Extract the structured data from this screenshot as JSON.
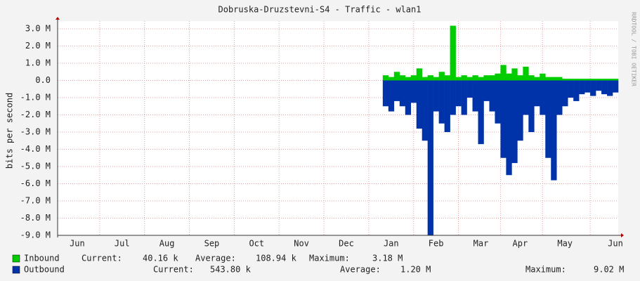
{
  "chart_data": {
    "type": "area",
    "title": "Dobruska-Druzstevni-S4 - Traffic - wlan1",
    "y_label": "bits per second",
    "watermark": "RRDTOOL / TOBI OETIKER",
    "grid": true,
    "categories": [
      null,
      null,
      null,
      "Jun",
      null,
      null,
      null,
      null,
      null,
      null,
      null,
      "Jul",
      null,
      null,
      null,
      null,
      null,
      null,
      null,
      "Aug",
      null,
      null,
      null,
      null,
      null,
      null,
      null,
      "Sep",
      null,
      null,
      null,
      null,
      null,
      null,
      null,
      "Oct",
      null,
      null,
      null,
      null,
      null,
      null,
      null,
      "Nov",
      null,
      null,
      null,
      null,
      null,
      null,
      null,
      "Dec",
      null,
      null,
      null,
      null,
      null,
      null,
      null,
      "Jan",
      null,
      null,
      null,
      null,
      null,
      null,
      null,
      "Feb",
      null,
      null,
      null,
      null,
      null,
      null,
      null,
      "Mar",
      null,
      null,
      null,
      null,
      null,
      null,
      "Apr",
      null,
      null,
      null,
      null,
      null,
      null,
      null,
      "May",
      null,
      null,
      null,
      null,
      null,
      null,
      null,
      null,
      "Jun"
    ],
    "ylim": [
      -9000000,
      3450000
    ],
    "yticks": [
      {
        "value": 3000000,
        "label": "3.0 M"
      },
      {
        "value": 2000000,
        "label": "2.0 M"
      },
      {
        "value": 1000000,
        "label": "1.0 M"
      },
      {
        "value": 0,
        "label": "0.0"
      },
      {
        "value": -1000000,
        "label": "-1.0 M"
      },
      {
        "value": -2000000,
        "label": "-2.0 M"
      },
      {
        "value": -3000000,
        "label": "-3.0 M"
      },
      {
        "value": -4000000,
        "label": "-4.0 M"
      },
      {
        "value": -5000000,
        "label": "-5.0 M"
      },
      {
        "value": -6000000,
        "label": "-6.0 M"
      },
      {
        "value": -7000000,
        "label": "-7.0 M"
      },
      {
        "value": -8000000,
        "label": "-8.0 M"
      },
      {
        "value": -9000000,
        "label": "-9.0 M"
      }
    ],
    "series": [
      {
        "name": "Inbound",
        "color": "#00cc00",
        "stats": [
          [
            "Current:",
            "40.16 k"
          ],
          [
            "Average:",
            "108.94 k"
          ],
          [
            "Maximum:",
            "3.18 M"
          ]
        ],
        "values": [
          null,
          null,
          null,
          null,
          null,
          null,
          null,
          null,
          null,
          null,
          null,
          null,
          null,
          null,
          null,
          null,
          null,
          null,
          null,
          null,
          null,
          null,
          null,
          null,
          null,
          null,
          null,
          null,
          null,
          null,
          null,
          null,
          null,
          null,
          null,
          null,
          null,
          null,
          null,
          null,
          null,
          null,
          null,
          null,
          null,
          null,
          null,
          null,
          null,
          null,
          null,
          null,
          null,
          null,
          null,
          null,
          null,
          null,
          300000,
          200000,
          500000,
          300000,
          200000,
          300000,
          700000,
          200000,
          300000,
          200000,
          500000,
          300000,
          3180000,
          200000,
          300000,
          200000,
          300000,
          200000,
          300000,
          300000,
          400000,
          900000,
          400000,
          700000,
          300000,
          800000,
          300000,
          200000,
          400000,
          200000,
          200000,
          200000,
          100000,
          100000,
          100000,
          100000,
          100000,
          100000,
          100000,
          100000,
          100000,
          100000
        ]
      },
      {
        "name": "Outbound",
        "color": "#0033aa",
        "stats": [
          [
            "Current:",
            "543.80 k"
          ],
          [
            "Average:",
            "1.20 M"
          ],
          [
            "Maximum:",
            "9.02 M"
          ]
        ],
        "values": [
          null,
          null,
          null,
          null,
          null,
          null,
          null,
          null,
          null,
          null,
          null,
          null,
          null,
          null,
          null,
          null,
          null,
          null,
          null,
          null,
          null,
          null,
          null,
          null,
          null,
          null,
          null,
          null,
          null,
          null,
          null,
          null,
          null,
          null,
          null,
          null,
          null,
          null,
          null,
          null,
          null,
          null,
          null,
          null,
          null,
          null,
          null,
          null,
          null,
          null,
          null,
          null,
          null,
          null,
          null,
          null,
          null,
          null,
          -1500000,
          -1800000,
          -1200000,
          -1500000,
          -2000000,
          -1300000,
          -2800000,
          -3500000,
          -9000000,
          -1800000,
          -2500000,
          -3000000,
          -2000000,
          -1500000,
          -2000000,
          -1000000,
          -1800000,
          -3700000,
          -1200000,
          -1800000,
          -2500000,
          -4500000,
          -5500000,
          -4800000,
          -3500000,
          -2000000,
          -3000000,
          -1500000,
          -2000000,
          -4500000,
          -5800000,
          -2000000,
          -1500000,
          -1000000,
          -1200000,
          -800000,
          -700000,
          -900000,
          -600000,
          -800000,
          -900000,
          -700000
        ]
      }
    ]
  }
}
